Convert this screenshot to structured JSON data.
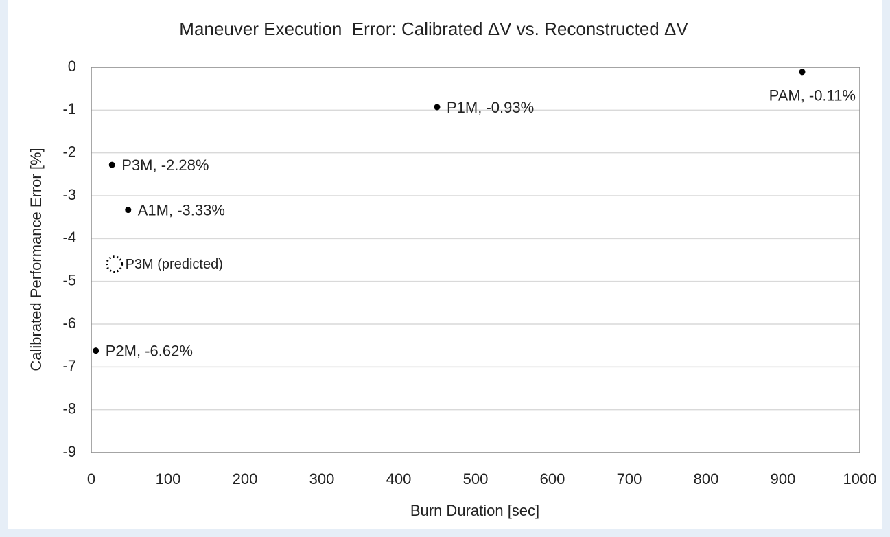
{
  "chart_data": {
    "type": "scatter",
    "title": "Maneuver Execution  Error: Calibrated ΔV vs. Reconstructed ΔV",
    "x_label": "Burn Duration [sec]",
    "y_label": "Calibrated Performance Error [%]",
    "x": [
      925,
      450,
      27,
      48,
      6
    ],
    "values": [
      -0.11,
      -0.93,
      -2.28,
      -3.33,
      -6.62
    ],
    "value_labels": [
      "PAM, -0.11%",
      "P1M, -0.93%",
      "P3M, -2.28%",
      "A1M, -3.33%",
      "P2M, -6.62%"
    ],
    "color": "#000000",
    "annotations": [
      {
        "text": "P3M (predicted)",
        "x": 30,
        "y": -4.6
      }
    ],
    "xlim": [
      0,
      1000
    ],
    "ylim": [
      -9,
      0
    ],
    "xticks": [
      0,
      100,
      200,
      300,
      400,
      500,
      600,
      700,
      800,
      900,
      1000
    ],
    "yticks": [
      0,
      -1,
      -2,
      -3,
      -4,
      -5,
      -6,
      -7,
      -8,
      -9
    ],
    "grid": true
  }
}
